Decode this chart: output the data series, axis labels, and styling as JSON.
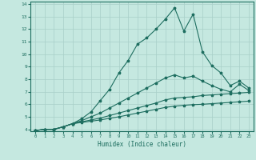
{
  "xlabel": "Humidex (Indice chaleur)",
  "bg_color": "#c5e8e0",
  "grid_color": "#a8cfc8",
  "line_color": "#1e6e60",
  "xlim": [
    -0.5,
    23.5
  ],
  "ylim": [
    3.85,
    14.2
  ],
  "xticks": [
    0,
    1,
    2,
    3,
    4,
    5,
    6,
    7,
    8,
    9,
    10,
    11,
    12,
    13,
    14,
    15,
    16,
    17,
    18,
    19,
    20,
    21,
    22,
    23
  ],
  "yticks": [
    4,
    5,
    6,
    7,
    8,
    9,
    10,
    11,
    12,
    13,
    14
  ],
  "line1_x": [
    0,
    1,
    2,
    3,
    4,
    5,
    6,
    7,
    8,
    9,
    10,
    11,
    12,
    13,
    14,
    15,
    16,
    17,
    18,
    19,
    20,
    21,
    22,
    23
  ],
  "line1_y": [
    3.9,
    4.0,
    4.0,
    4.2,
    4.45,
    4.85,
    5.4,
    6.3,
    7.2,
    8.5,
    9.5,
    10.8,
    11.3,
    12.0,
    12.8,
    13.7,
    11.85,
    13.2,
    10.2,
    9.1,
    8.5,
    7.5,
    7.85,
    7.3
  ],
  "line2_x": [
    0,
    1,
    2,
    3,
    4,
    5,
    6,
    7,
    8,
    9,
    10,
    11,
    12,
    13,
    14,
    15,
    16,
    17,
    18,
    19,
    20,
    21,
    22,
    23
  ],
  "line2_y": [
    3.9,
    4.0,
    4.0,
    4.2,
    4.45,
    4.7,
    5.0,
    5.3,
    5.7,
    6.1,
    6.5,
    6.9,
    7.3,
    7.7,
    8.1,
    8.35,
    8.1,
    8.25,
    7.85,
    7.5,
    7.2,
    7.0,
    7.6,
    7.1
  ],
  "line3_x": [
    0,
    1,
    2,
    3,
    4,
    5,
    6,
    7,
    8,
    9,
    10,
    11,
    12,
    13,
    14,
    15,
    16,
    17,
    18,
    19,
    20,
    21,
    22,
    23
  ],
  "line3_y": [
    3.9,
    4.0,
    4.0,
    4.2,
    4.45,
    4.6,
    4.75,
    4.9,
    5.1,
    5.3,
    5.5,
    5.7,
    5.9,
    6.1,
    6.35,
    6.5,
    6.55,
    6.6,
    6.7,
    6.75,
    6.8,
    6.85,
    6.9,
    6.95
  ],
  "line4_x": [
    0,
    1,
    2,
    3,
    4,
    5,
    6,
    7,
    8,
    9,
    10,
    11,
    12,
    13,
    14,
    15,
    16,
    17,
    18,
    19,
    20,
    21,
    22,
    23
  ],
  "line4_y": [
    3.9,
    4.0,
    4.0,
    4.2,
    4.45,
    4.55,
    4.65,
    4.75,
    4.88,
    5.0,
    5.15,
    5.3,
    5.45,
    5.6,
    5.75,
    5.85,
    5.92,
    5.97,
    6.0,
    6.05,
    6.1,
    6.15,
    6.2,
    6.25
  ]
}
